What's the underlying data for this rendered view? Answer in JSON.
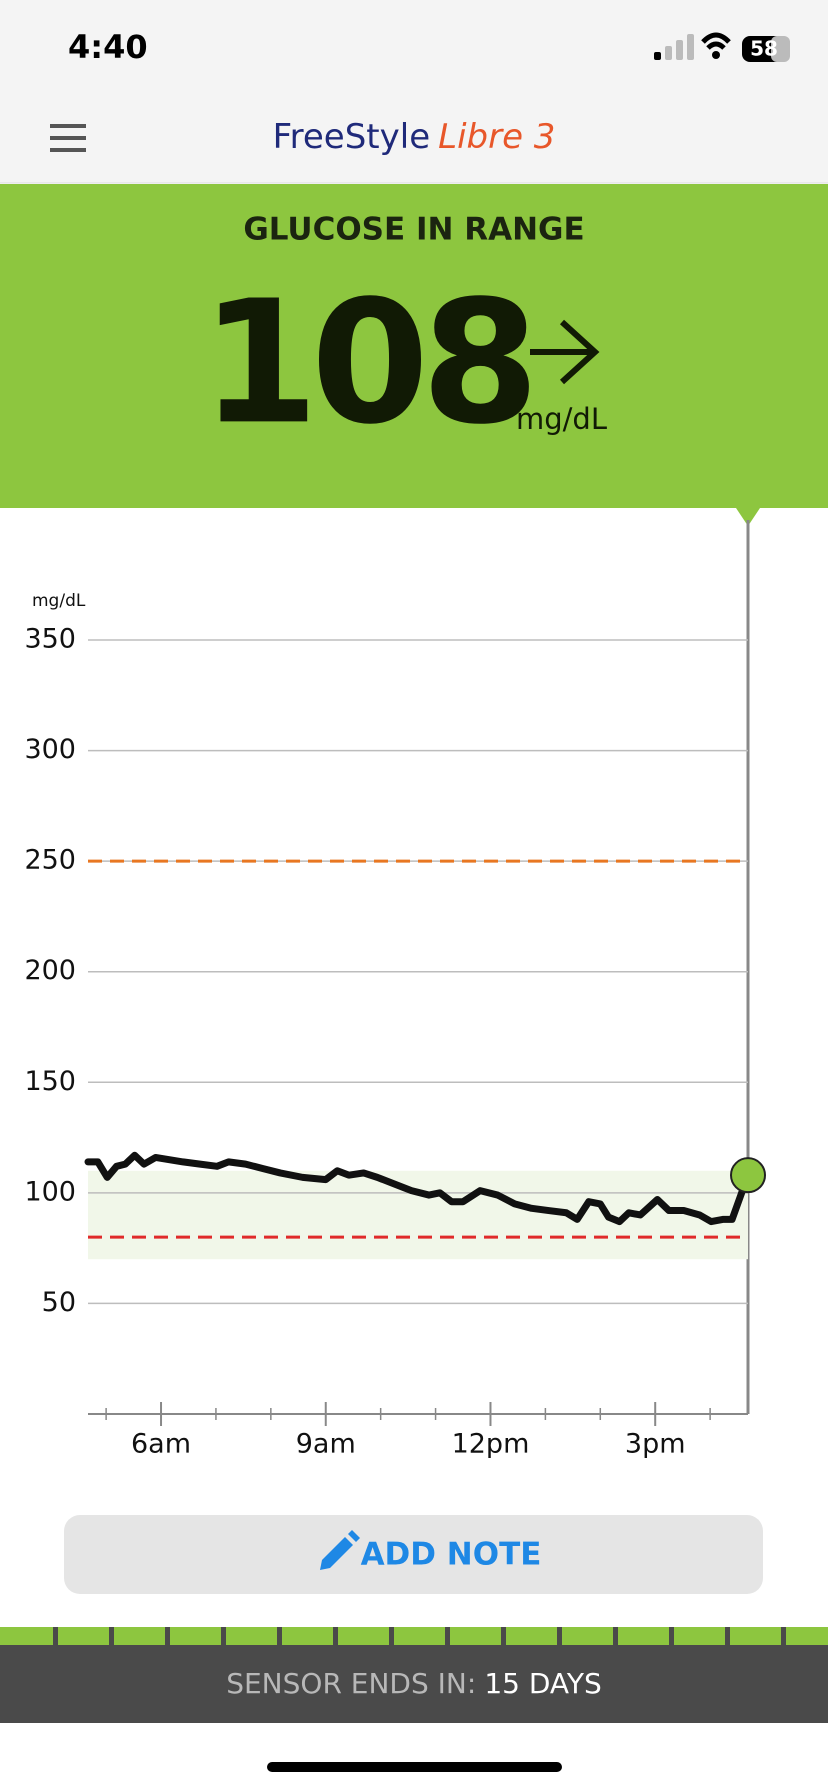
{
  "status_bar": {
    "time": "4:40",
    "battery": "58"
  },
  "header": {
    "brand": "FreeStyle",
    "brand_accent": "Libre 3"
  },
  "glucose": {
    "status": "GLUCOSE IN RANGE",
    "value": 108,
    "unit": "mg/dL"
  },
  "chart_data": {
    "type": "line",
    "y_label": "mg/dL",
    "color": "#111111",
    "x": [
      4.67,
      4.85,
      5.02,
      5.19,
      5.35,
      5.52,
      5.69,
      5.9,
      6.15,
      6.4,
      6.71,
      7.02,
      7.23,
      7.54,
      7.85,
      8.17,
      8.58,
      9.0,
      9.21,
      9.42,
      9.69,
      9.94,
      10.25,
      10.56,
      10.88,
      11.08,
      11.29,
      11.5,
      11.81,
      12.13,
      12.44,
      12.75,
      13.06,
      13.38,
      13.58,
      13.79,
      14.0,
      14.15,
      14.35,
      14.52,
      14.73,
      15.04,
      15.25,
      15.52,
      15.81,
      16.02,
      16.23,
      16.4,
      16.69
    ],
    "values": [
      114,
      114,
      107,
      112,
      113,
      117,
      113,
      116,
      115,
      114,
      113,
      112,
      114,
      113,
      111,
      109,
      107,
      106,
      110,
      108,
      109,
      107,
      104,
      101,
      99,
      100,
      96,
      96,
      101,
      99,
      95,
      93,
      92,
      91,
      88,
      96,
      95,
      89,
      87,
      91,
      90,
      97,
      92,
      92,
      90,
      87,
      88,
      88,
      108
    ],
    "xlim": [
      4.67,
      16.69
    ],
    "xticks": [
      {
        "value": 6,
        "label": "6am"
      },
      {
        "value": 9,
        "label": "9am"
      },
      {
        "value": 12,
        "label": "12pm"
      },
      {
        "value": 15,
        "label": "3pm"
      }
    ],
    "x_minor_ticks": [
      5,
      7,
      8,
      10,
      11,
      13,
      14,
      16
    ],
    "ylim": [
      0,
      350
    ],
    "yticks": [
      50,
      100,
      150,
      200,
      250,
      300,
      350
    ],
    "grid": true,
    "target_range": [
      70,
      110
    ],
    "target_color": "#f1f7e9",
    "high_line": 250,
    "high_color": "#e87722",
    "low_line": 80,
    "low_color": "#e02a2a",
    "current_color": "#8dc63f"
  },
  "note_button": {
    "label": "ADD NOTE"
  },
  "sensor": {
    "label": "SENSOR ENDS IN:",
    "value": "15 DAYS"
  }
}
